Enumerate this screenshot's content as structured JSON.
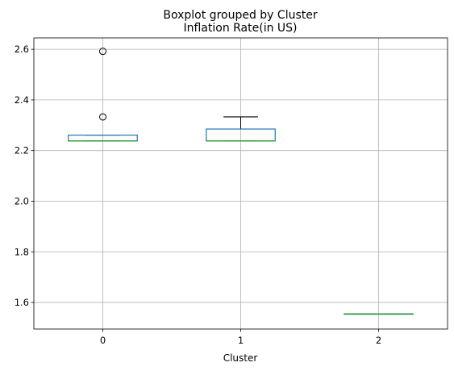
{
  "chart_data": {
    "type": "boxplot",
    "suptitle": "Boxplot grouped by Cluster",
    "title": "Inflation Rate(in US)",
    "xlabel": "Cluster",
    "ylabel": "",
    "categories": [
      "0",
      "1",
      "2"
    ],
    "ylim": [
      1.495,
      2.645
    ],
    "yticks": [
      1.6,
      1.8,
      2.0,
      2.2,
      2.4,
      2.6
    ],
    "ytick_labels": [
      "1.6",
      "1.8",
      "2.0",
      "2.2",
      "2.4",
      "2.6"
    ],
    "grid": true,
    "legend": "none",
    "boxes": [
      {
        "category": "0",
        "whisker_low": 2.238,
        "q1": 2.238,
        "median": 2.238,
        "q3": 2.261,
        "whisker_high": 2.261,
        "outliers": [
          2.333,
          2.592
        ]
      },
      {
        "category": "1",
        "whisker_low": 2.238,
        "q1": 2.238,
        "median": 2.238,
        "q3": 2.285,
        "whisker_high": 2.333,
        "outliers": []
      },
      {
        "category": "2",
        "whisker_low": 1.555,
        "q1": 1.555,
        "median": 1.555,
        "q3": 1.555,
        "whisker_high": 1.555,
        "outliers": []
      }
    ],
    "colors": {
      "box": "#1f77b4",
      "median": "#2ca02c",
      "whisker": "#000000",
      "flier": "#000000",
      "grid": "#b0b0b0"
    }
  }
}
